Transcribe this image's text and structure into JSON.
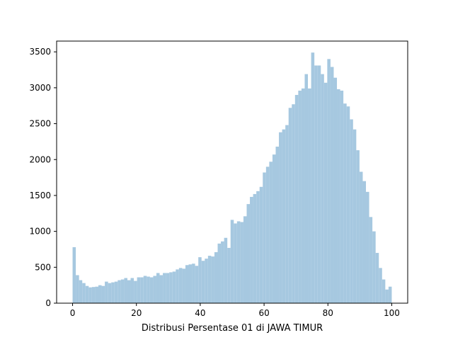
{
  "chart_data": {
    "type": "bar",
    "title": "",
    "xlabel": "Distribusi Persentase 01 di JAWA TIMUR",
    "ylabel": "",
    "xlim": [
      -5,
      105
    ],
    "ylim": [
      0,
      3650
    ],
    "x_ticks": [
      0,
      20,
      40,
      60,
      80,
      100
    ],
    "y_ticks": [
      0,
      500,
      1000,
      1500,
      2000,
      2500,
      3000,
      3500
    ],
    "grid": false,
    "bar_color": "#a6c8e0",
    "bin_start": 0,
    "bin_width": 1,
    "values": [
      780,
      390,
      320,
      280,
      240,
      220,
      225,
      230,
      250,
      240,
      300,
      280,
      290,
      300,
      320,
      330,
      350,
      320,
      350,
      310,
      360,
      360,
      380,
      370,
      360,
      380,
      420,
      390,
      420,
      420,
      430,
      440,
      470,
      490,
      480,
      530,
      540,
      550,
      520,
      640,
      590,
      620,
      660,
      650,
      710,
      830,
      860,
      910,
      770,
      1160,
      1110,
      1140,
      1130,
      1210,
      1380,
      1480,
      1520,
      1560,
      1620,
      1820,
      1900,
      1970,
      2070,
      2180,
      2380,
      2420,
      2480,
      2720,
      2770,
      2900,
      2960,
      2990,
      3190,
      2990,
      3490,
      3310,
      3310,
      3190,
      3070,
      3400,
      3290,
      3140,
      2980,
      2960,
      2780,
      2740,
      2560,
      2420,
      2130,
      1830,
      1700,
      1550,
      1200,
      1000,
      700,
      490,
      330,
      190,
      230
    ]
  }
}
